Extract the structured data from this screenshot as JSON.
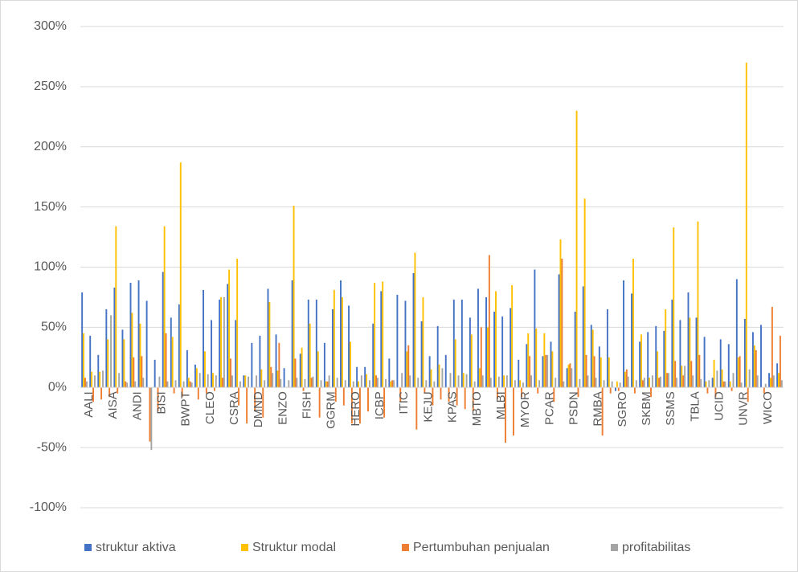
{
  "chart_data": {
    "type": "bar",
    "categories": [
      "AALI",
      null,
      null,
      "AISA",
      null,
      null,
      "ANDI",
      null,
      null,
      "BISI",
      null,
      null,
      "BWPT",
      null,
      null,
      "CLEO",
      null,
      null,
      "CSRA",
      null,
      null,
      "DMND",
      null,
      null,
      "ENZO",
      null,
      null,
      "FISH",
      null,
      null,
      "GGRM",
      null,
      null,
      "HERO",
      null,
      null,
      "ICBP",
      null,
      null,
      "ITIC",
      null,
      null,
      "KEJU",
      null,
      null,
      "KPAS",
      null,
      null,
      "MBTO",
      null,
      null,
      "MLBI",
      null,
      null,
      "MYOR",
      null,
      null,
      "PCAR",
      null,
      null,
      "PSDN",
      null,
      null,
      "RMBA",
      null,
      null,
      "SGRO",
      null,
      null,
      "SKBM",
      null,
      null,
      "SSMS",
      null,
      null,
      "TBLA",
      null,
      null,
      "UCID",
      null,
      null,
      "UNVR",
      null,
      null,
      "WICO",
      null,
      null
    ],
    "series": [
      {
        "name": "struktur aktiva",
        "color": "#4472c4",
        "values": [
          79,
          43,
          27,
          65,
          83,
          48,
          87,
          89,
          72,
          23,
          96,
          58,
          69,
          31,
          19,
          81,
          56,
          73,
          86,
          56,
          10,
          37,
          43,
          82,
          44,
          16,
          89,
          28,
          73,
          73,
          37,
          65,
          89,
          68,
          17,
          17,
          53,
          80,
          24,
          77,
          72,
          95,
          55,
          26,
          51,
          27,
          73,
          73,
          58,
          82,
          75,
          63,
          59,
          66,
          23,
          36,
          98,
          26,
          38,
          94,
          16,
          63,
          84,
          52,
          34,
          65,
          -3,
          89,
          78,
          38,
          46,
          51,
          47,
          73,
          56,
          79,
          58,
          42,
          8,
          40,
          36,
          90,
          57,
          46,
          52,
          12,
          20
        ]
      },
      {
        "name": "Struktur modal",
        "color": "#ffc000",
        "values": [
          45,
          13,
          13,
          40,
          134,
          40,
          62,
          53,
          0,
          0,
          134,
          42,
          187,
          8,
          16,
          30,
          12,
          75,
          98,
          107,
          10,
          0,
          15,
          71,
          14,
          0,
          151,
          33,
          53,
          30,
          5,
          81,
          75,
          38,
          5,
          11,
          87,
          88,
          5,
          0,
          30,
          112,
          75,
          15,
          19,
          0,
          40,
          12,
          44,
          16,
          50,
          80,
          10,
          85,
          6,
          45,
          49,
          45,
          30,
          123,
          19,
          230,
          157,
          48,
          25,
          25,
          5,
          13,
          107,
          44,
          8,
          30,
          65,
          133,
          18,
          58,
          138,
          5,
          23,
          15,
          5,
          25,
          270,
          35,
          0,
          8,
          12
        ]
      },
      {
        "name": "Pertumbuhan penjualan",
        "color": "#ed7d31",
        "values": [
          8,
          -12,
          -10,
          -8,
          -5,
          5,
          25,
          26,
          -45,
          -20,
          45,
          -5,
          -8,
          5,
          -10,
          -5,
          -3,
          8,
          24,
          -15,
          -30,
          -20,
          -25,
          17,
          37,
          0,
          24,
          -3,
          8,
          -25,
          5,
          -12,
          -15,
          -30,
          -30,
          -20,
          10,
          -25,
          6,
          -12,
          35,
          -35,
          -5,
          -15,
          -10,
          -12,
          -15,
          -18,
          -20,
          50,
          110,
          -10,
          -46,
          -40,
          -8,
          26,
          -5,
          27,
          -12,
          107,
          20,
          -8,
          27,
          26,
          -40,
          -5,
          -3,
          15,
          -5,
          6,
          -8,
          8,
          12,
          22,
          10,
          22,
          27,
          -5,
          -8,
          5,
          -3,
          26,
          -12,
          31,
          -5,
          67,
          43
        ]
      },
      {
        "name": "profitabilitas",
        "color": "#a5a5a5",
        "values": [
          5,
          10,
          14,
          60,
          12,
          4,
          5,
          8,
          -52,
          9,
          5,
          6,
          5,
          4,
          12,
          11,
          10,
          75,
          10,
          5,
          9,
          10,
          6,
          12,
          7,
          6,
          8,
          7,
          9,
          6,
          10,
          8,
          6,
          5,
          10,
          6,
          8,
          7,
          6,
          12,
          10,
          8,
          6,
          5,
          16,
          12,
          10,
          11,
          5,
          10,
          8,
          9,
          10,
          6,
          4,
          10,
          6,
          27,
          8,
          5,
          16,
          7,
          10,
          8,
          6,
          5,
          4,
          9,
          6,
          8,
          10,
          9,
          12,
          8,
          18,
          10,
          7,
          6,
          14,
          5,
          12,
          4,
          15,
          10,
          3,
          10,
          6
        ]
      }
    ],
    "ylim": [
      -100,
      300
    ],
    "yticks": [
      {
        "value": -100,
        "label": "-100%"
      },
      {
        "value": -50,
        "label": "-50%"
      },
      {
        "value": 0,
        "label": "0%"
      },
      {
        "value": 50,
        "label": "50%"
      },
      {
        "value": 100,
        "label": "100%"
      },
      {
        "value": 150,
        "label": "150%"
      },
      {
        "value": 200,
        "label": "200%"
      },
      {
        "value": 250,
        "label": "250%"
      },
      {
        "value": 300,
        "label": "300%"
      }
    ],
    "grid": true,
    "legend": "bottom"
  }
}
